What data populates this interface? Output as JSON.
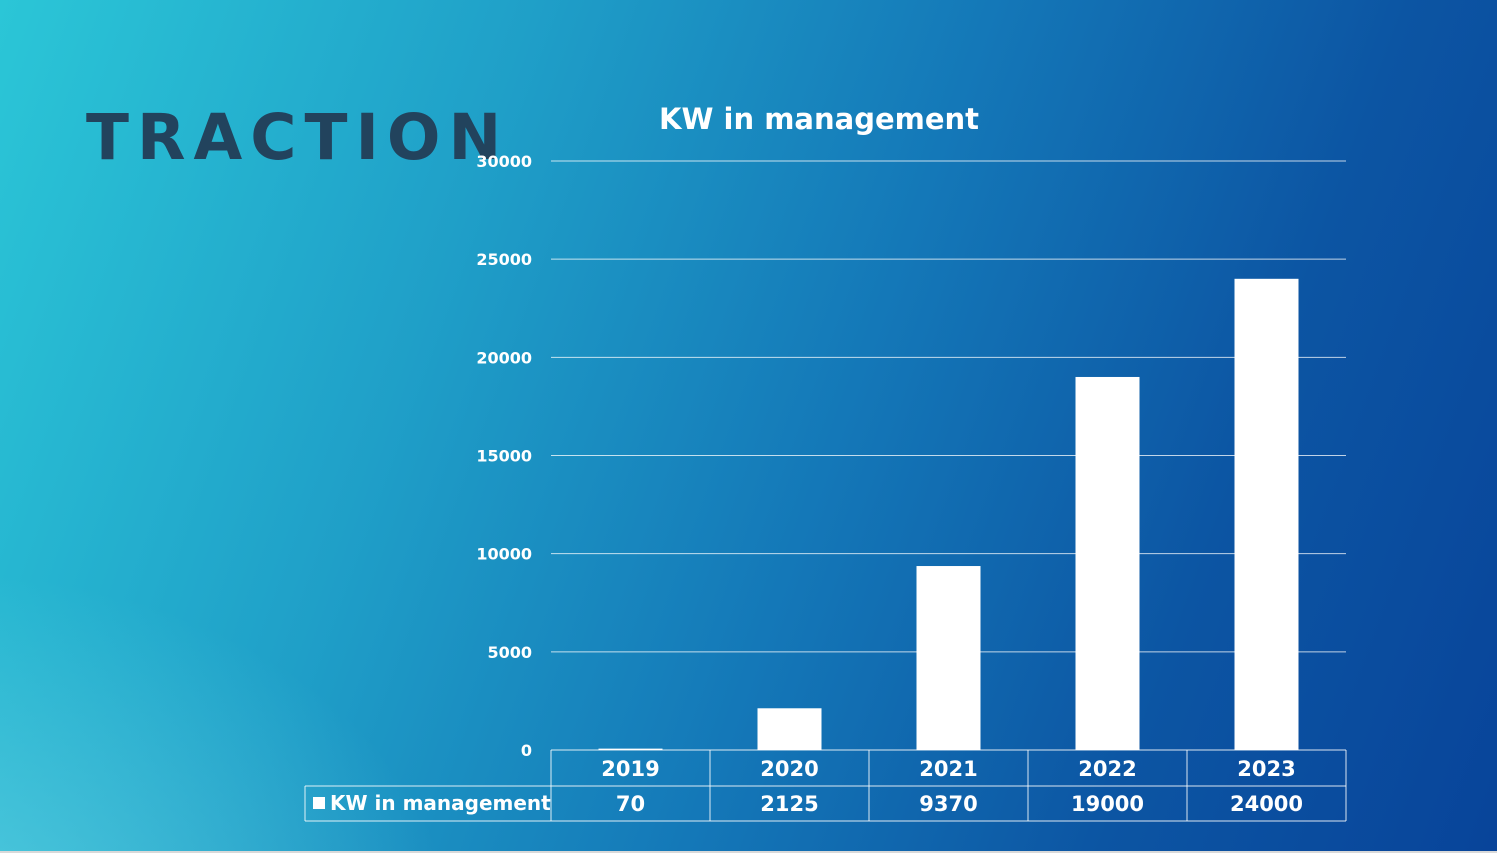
{
  "slide": {
    "title": "TRACTION"
  },
  "chart_data": {
    "type": "bar",
    "title": "KW in management",
    "categories": [
      "2019",
      "2020",
      "2021",
      "2022",
      "2023"
    ],
    "series": [
      {
        "name": "KW in management",
        "color": "#ffffff",
        "values": [
          70,
          2125,
          9370,
          19000,
          24000
        ]
      }
    ],
    "ylim": [
      0,
      30000
    ],
    "yticks": [
      0,
      5000,
      10000,
      15000,
      20000,
      25000,
      30000
    ],
    "grid": true,
    "legend": "data-table-left",
    "data_table": true
  }
}
